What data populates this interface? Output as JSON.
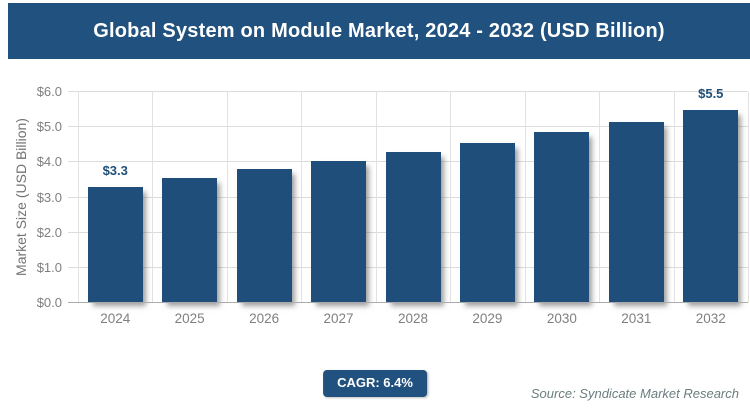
{
  "header": {
    "title": "Global System on Module Market, 2024 - 2032 (USD Billion)"
  },
  "chart_data": {
    "type": "bar",
    "title": "Global System on Module Market, 2024 - 2032 (USD Billion)",
    "categories": [
      "2024",
      "2025",
      "2026",
      "2027",
      "2028",
      "2029",
      "2030",
      "2031",
      "2032"
    ],
    "values": [
      3.3,
      3.55,
      3.8,
      4.05,
      4.3,
      4.55,
      4.85,
      5.15,
      5.5
    ],
    "point_labels": [
      "$3.3",
      null,
      null,
      null,
      null,
      null,
      null,
      null,
      "$5.5"
    ],
    "xlabel": "",
    "ylabel": "Market Size (USD Billion)",
    "ylim": [
      0,
      6
    ],
    "y_ticks": [
      "$0.0",
      "$1.0",
      "$2.0",
      "$3.0",
      "$4.0",
      "$5.0",
      "$6.0"
    ],
    "grid": true,
    "legend": false
  },
  "footer": {
    "cagr_label": "CAGR: 6.4%",
    "source": "Source: Syndicate Market Research"
  },
  "colors": {
    "header_bg": "#21517E",
    "header_text": "#FFFFFF",
    "bar": "#1F4E7B",
    "point_label_text": "#1F4E79",
    "gridline": "#DCDCDC",
    "baseline": "#ABABAB",
    "tick_text": "#7F7F7F",
    "axis_title_text": "#737373",
    "badge_bg": "#21517E",
    "badge_text": "#FFFFFF",
    "source_text": "#6C7D80"
  }
}
